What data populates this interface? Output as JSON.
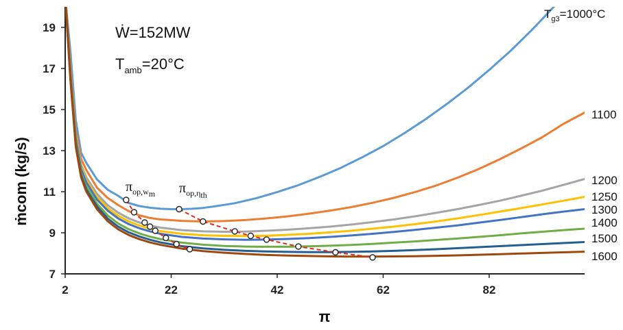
{
  "chart_data": {
    "type": "line",
    "xlabel": "π",
    "ylabel": "ṁcom (kg/s)",
    "xlim": [
      2,
      100
    ],
    "ylim": [
      7,
      20
    ],
    "x_ticks": [
      "2",
      "22",
      "42",
      "62",
      "82"
    ],
    "x_tick_values": [
      2,
      22,
      42,
      62,
      82
    ],
    "y_ticks": [
      "7",
      "9",
      "11",
      "13",
      "15",
      "17",
      "19"
    ],
    "y_tick_values": [
      7,
      9,
      11,
      13,
      15,
      17,
      19
    ],
    "grid": false,
    "annotations": {
      "power": "Ẇ=152MW",
      "t_amb_main": "T",
      "t_amb_sub": "amb",
      "t_amb_rest": "=20°C",
      "pi_wm_main": "π",
      "pi_wm_sub": "op,w",
      "pi_wm_subsub": "m",
      "pi_eta_main": "π",
      "pi_eta_sub": "op,η",
      "pi_eta_subsub": "th"
    },
    "series": [
      {
        "name": "Tg3=1000°C",
        "label_main": "T",
        "label_sub": "g3",
        "label_rest": "=1000°C",
        "color": "#5B9BD5",
        "points": [
          [
            2,
            20.5
          ],
          [
            3,
            17.8
          ],
          [
            4,
            14.5
          ],
          [
            5,
            12.9
          ],
          [
            6,
            12.4
          ],
          [
            8,
            11.6
          ],
          [
            10,
            11.1
          ],
          [
            12,
            10.8
          ],
          [
            14,
            10.45
          ],
          [
            16,
            10.3
          ],
          [
            18,
            10.22
          ],
          [
            20,
            10.17
          ],
          [
            22,
            10.15
          ],
          [
            24,
            10.15
          ],
          [
            26,
            10.17
          ],
          [
            28,
            10.21
          ],
          [
            30,
            10.28
          ],
          [
            34,
            10.44
          ],
          [
            38,
            10.68
          ],
          [
            42,
            10.98
          ],
          [
            46,
            11.32
          ],
          [
            50,
            11.72
          ],
          [
            54,
            12.16
          ],
          [
            58,
            12.67
          ],
          [
            62,
            13.22
          ],
          [
            66,
            13.85
          ],
          [
            70,
            14.53
          ],
          [
            74,
            15.27
          ],
          [
            78,
            16.06
          ],
          [
            82,
            16.93
          ],
          [
            86,
            17.85
          ],
          [
            90,
            18.86
          ],
          [
            94,
            19.95
          ],
          [
            96,
            20.5
          ]
        ]
      },
      {
        "name": "1100",
        "label": "1100",
        "color": "#ED7D31",
        "points": [
          [
            2,
            20.5
          ],
          [
            3,
            17.2
          ],
          [
            4,
            14.0
          ],
          [
            5,
            12.6
          ],
          [
            6,
            12.05
          ],
          [
            8,
            11.2
          ],
          [
            10,
            10.7
          ],
          [
            12,
            10.35
          ],
          [
            14,
            10.05
          ],
          [
            16,
            9.85
          ],
          [
            18,
            9.72
          ],
          [
            20,
            9.65
          ],
          [
            24,
            9.58
          ],
          [
            28,
            9.55
          ],
          [
            32,
            9.57
          ],
          [
            36,
            9.62
          ],
          [
            40,
            9.7
          ],
          [
            44,
            9.8
          ],
          [
            48,
            9.93
          ],
          [
            52,
            10.08
          ],
          [
            56,
            10.25
          ],
          [
            60,
            10.46
          ],
          [
            64,
            10.7
          ],
          [
            68,
            10.98
          ],
          [
            72,
            11.3
          ],
          [
            76,
            11.68
          ],
          [
            80,
            12.1
          ],
          [
            84,
            12.58
          ],
          [
            88,
            13.1
          ],
          [
            92,
            13.65
          ],
          [
            96,
            14.3
          ],
          [
            100,
            14.85
          ]
        ]
      },
      {
        "name": "1200",
        "label": "1200",
        "color": "#A5A5A5",
        "points": [
          [
            2,
            20.5
          ],
          [
            3,
            17.0
          ],
          [
            4,
            13.8
          ],
          [
            5,
            12.3
          ],
          [
            6,
            11.7
          ],
          [
            8,
            10.9
          ],
          [
            10,
            10.35
          ],
          [
            12,
            9.98
          ],
          [
            14,
            9.7
          ],
          [
            16,
            9.5
          ],
          [
            18,
            9.35
          ],
          [
            20,
            9.25
          ],
          [
            24,
            9.13
          ],
          [
            28,
            9.07
          ],
          [
            32,
            9.05
          ],
          [
            36,
            9.06
          ],
          [
            40,
            9.1
          ],
          [
            44,
            9.15
          ],
          [
            48,
            9.22
          ],
          [
            52,
            9.3
          ],
          [
            56,
            9.4
          ],
          [
            60,
            9.52
          ],
          [
            64,
            9.65
          ],
          [
            68,
            9.8
          ],
          [
            72,
            9.97
          ],
          [
            76,
            10.15
          ],
          [
            80,
            10.35
          ],
          [
            84,
            10.56
          ],
          [
            88,
            10.8
          ],
          [
            92,
            11.05
          ],
          [
            96,
            11.33
          ],
          [
            100,
            11.62
          ]
        ]
      },
      {
        "name": "1250",
        "label": "1250",
        "color": "#FFC000",
        "points": [
          [
            2,
            20.5
          ],
          [
            3,
            16.9
          ],
          [
            4,
            13.7
          ],
          [
            5,
            12.2
          ],
          [
            6,
            11.55
          ],
          [
            8,
            10.75
          ],
          [
            10,
            10.2
          ],
          [
            12,
            9.83
          ],
          [
            14,
            9.55
          ],
          [
            16,
            9.35
          ],
          [
            18,
            9.2
          ],
          [
            20,
            9.08
          ],
          [
            24,
            8.95
          ],
          [
            28,
            8.88
          ],
          [
            32,
            8.85
          ],
          [
            36,
            8.84
          ],
          [
            40,
            8.86
          ],
          [
            44,
            8.9
          ],
          [
            48,
            8.95
          ],
          [
            52,
            9.02
          ],
          [
            56,
            9.1
          ],
          [
            60,
            9.2
          ],
          [
            64,
            9.3
          ],
          [
            68,
            9.42
          ],
          [
            72,
            9.55
          ],
          [
            76,
            9.7
          ],
          [
            80,
            9.86
          ],
          [
            84,
            10.03
          ],
          [
            88,
            10.2
          ],
          [
            92,
            10.38
          ],
          [
            96,
            10.56
          ],
          [
            100,
            10.75
          ]
        ]
      },
      {
        "name": "1300",
        "label": "1300",
        "color": "#4472C4",
        "points": [
          [
            2,
            20.5
          ],
          [
            3,
            16.8
          ],
          [
            4,
            13.6
          ],
          [
            5,
            12.1
          ],
          [
            6,
            11.45
          ],
          [
            8,
            10.62
          ],
          [
            10,
            10.08
          ],
          [
            12,
            9.7
          ],
          [
            14,
            9.42
          ],
          [
            16,
            9.22
          ],
          [
            18,
            9.07
          ],
          [
            20,
            8.95
          ],
          [
            24,
            8.8
          ],
          [
            28,
            8.72
          ],
          [
            32,
            8.68
          ],
          [
            36,
            8.66
          ],
          [
            40,
            8.67
          ],
          [
            44,
            8.7
          ],
          [
            48,
            8.74
          ],
          [
            52,
            8.8
          ],
          [
            56,
            8.87
          ],
          [
            60,
            8.95
          ],
          [
            64,
            9.04
          ],
          [
            68,
            9.14
          ],
          [
            72,
            9.25
          ],
          [
            76,
            9.36
          ],
          [
            80,
            9.49
          ],
          [
            84,
            9.62
          ],
          [
            88,
            9.76
          ],
          [
            92,
            9.9
          ],
          [
            96,
            10.03
          ],
          [
            100,
            10.15
          ]
        ]
      },
      {
        "name": "1400",
        "label": "1400",
        "color": "#70AD47",
        "points": [
          [
            2,
            20.5
          ],
          [
            3,
            16.6
          ],
          [
            4,
            13.4
          ],
          [
            5,
            11.9
          ],
          [
            6,
            11.25
          ],
          [
            8,
            10.42
          ],
          [
            10,
            9.85
          ],
          [
            12,
            9.45
          ],
          [
            14,
            9.17
          ],
          [
            16,
            8.97
          ],
          [
            18,
            8.81
          ],
          [
            20,
            8.69
          ],
          [
            24,
            8.52
          ],
          [
            28,
            8.42
          ],
          [
            32,
            8.36
          ],
          [
            36,
            8.33
          ],
          [
            40,
            8.32
          ],
          [
            44,
            8.32
          ],
          [
            48,
            8.34
          ],
          [
            52,
            8.37
          ],
          [
            56,
            8.41
          ],
          [
            60,
            8.46
          ],
          [
            64,
            8.52
          ],
          [
            68,
            8.58
          ],
          [
            72,
            8.65
          ],
          [
            76,
            8.72
          ],
          [
            80,
            8.8
          ],
          [
            84,
            8.88
          ],
          [
            88,
            8.97
          ],
          [
            92,
            9.05
          ],
          [
            96,
            9.13
          ],
          [
            100,
            9.2
          ]
        ]
      },
      {
        "name": "1500",
        "label": "1500",
        "color": "#255E91",
        "points": [
          [
            2,
            20.5
          ],
          [
            3,
            16.5
          ],
          [
            4,
            13.3
          ],
          [
            5,
            11.8
          ],
          [
            6,
            11.1
          ],
          [
            8,
            10.28
          ],
          [
            10,
            9.7
          ],
          [
            12,
            9.3
          ],
          [
            14,
            9.02
          ],
          [
            16,
            8.82
          ],
          [
            18,
            8.66
          ],
          [
            20,
            8.53
          ],
          [
            24,
            8.35
          ],
          [
            28,
            8.24
          ],
          [
            32,
            8.17
          ],
          [
            36,
            8.12
          ],
          [
            40,
            8.09
          ],
          [
            44,
            8.07
          ],
          [
            48,
            8.06
          ],
          [
            52,
            8.06
          ],
          [
            56,
            8.07
          ],
          [
            60,
            8.09
          ],
          [
            64,
            8.12
          ],
          [
            68,
            8.16
          ],
          [
            72,
            8.2
          ],
          [
            76,
            8.25
          ],
          [
            80,
            8.3
          ],
          [
            84,
            8.35
          ],
          [
            88,
            8.4
          ],
          [
            92,
            8.45
          ],
          [
            96,
            8.5
          ],
          [
            100,
            8.55
          ]
        ]
      },
      {
        "name": "1600",
        "label": "1600",
        "color": "#9E480E",
        "points": [
          [
            2,
            20.5
          ],
          [
            3,
            16.4
          ],
          [
            4,
            13.2
          ],
          [
            5,
            11.7
          ],
          [
            6,
            11.0
          ],
          [
            8,
            10.15
          ],
          [
            10,
            9.57
          ],
          [
            12,
            9.17
          ],
          [
            14,
            8.89
          ],
          [
            16,
            8.69
          ],
          [
            18,
            8.53
          ],
          [
            20,
            8.41
          ],
          [
            24,
            8.23
          ],
          [
            28,
            8.11
          ],
          [
            32,
            8.03
          ],
          [
            36,
            7.97
          ],
          [
            40,
            7.92
          ],
          [
            44,
            7.89
          ],
          [
            48,
            7.87
          ],
          [
            52,
            7.85
          ],
          [
            56,
            7.84
          ],
          [
            60,
            7.84
          ],
          [
            64,
            7.85
          ],
          [
            68,
            7.86
          ],
          [
            72,
            7.88
          ],
          [
            76,
            7.9
          ],
          [
            80,
            7.93
          ],
          [
            84,
            7.96
          ],
          [
            88,
            7.99
          ],
          [
            92,
            8.02
          ],
          [
            96,
            8.05
          ],
          [
            100,
            8.08
          ]
        ]
      }
    ],
    "optimum_points": {
      "pi_op_wm": {
        "color": "#E8281C",
        "points": [
          [
            13.5,
            10.6
          ],
          [
            15,
            10.0
          ],
          [
            17,
            9.5
          ],
          [
            18,
            9.3
          ],
          [
            19,
            9.1
          ],
          [
            21,
            8.75
          ],
          [
            23,
            8.45
          ],
          [
            25.5,
            8.2
          ]
        ]
      },
      "pi_op_eta_th": {
        "color": "#E8281C",
        "points": [
          [
            23.5,
            10.15
          ],
          [
            28,
            9.55
          ],
          [
            34,
            9.07
          ],
          [
            37,
            8.85
          ],
          [
            40,
            8.67
          ],
          [
            46,
            8.33
          ],
          [
            53,
            8.05
          ],
          [
            60,
            7.8
          ]
        ]
      }
    }
  }
}
